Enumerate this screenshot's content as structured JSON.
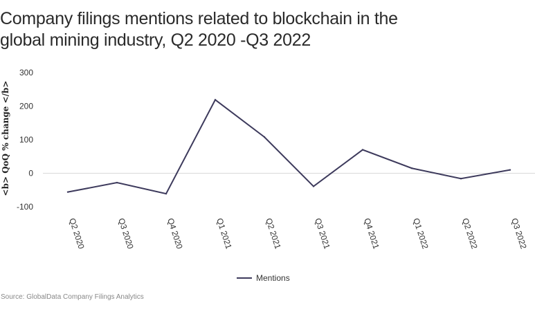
{
  "title_line1": "Company filings mentions related to blockchain in the",
  "title_line2": "global mining industry, Q2 2020 -Q3 2022",
  "source": "Source: GlobalData Company Filings Analytics",
  "colors": {
    "series": "#3d3a5c",
    "zero_line": "#d9d9d9",
    "text": "#333333"
  },
  "chart_data": {
    "type": "line",
    "title": "Company filings mentions related to blockchain in the global mining industry, Q2 2020 -Q3 2022",
    "xlabel": "",
    "ylabel": "<b> QoQ % change </b>",
    "categories": [
      "Q2 2020",
      "Q3 2020",
      "Q4 2020",
      "Q1 2021",
      "Q2 2021",
      "Q3 2021",
      "Q4 2021",
      "Q1 2022",
      "Q2 2022",
      "Q3 2022"
    ],
    "series": [
      {
        "name": "Mentions",
        "values": [
          -56,
          -28,
          -61,
          219,
          108,
          -39,
          70,
          15,
          -16,
          10
        ]
      }
    ],
    "ylim": [
      -100,
      300
    ],
    "yticks": [
      300,
      200,
      100,
      0,
      -100
    ],
    "grid": "zero line only",
    "legend": "bottom-center"
  }
}
